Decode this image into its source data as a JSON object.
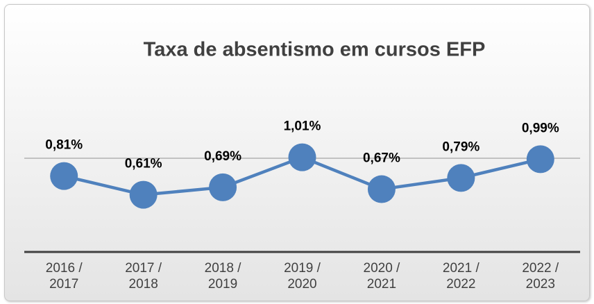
{
  "chart_data": {
    "type": "line",
    "title": "Taxa de absentismo em cursos EFP",
    "categories": [
      "2016 / 2017",
      "2017 / 2018",
      "2018 / 2019",
      "2019 / 2020",
      "2020 / 2021",
      "2021 / 2022",
      "2022 / 2023"
    ],
    "series": [
      {
        "name": "Taxa de absentismo",
        "color": "#4f81bd",
        "values": [
          0.81,
          0.61,
          0.69,
          1.01,
          0.67,
          0.79,
          0.99
        ],
        "value_labels": [
          "0,81%",
          "0,61%",
          "0,69%",
          "1,01%",
          "0,67%",
          "0,79%",
          "0,99%"
        ]
      }
    ],
    "ylim": [
      0,
      1.2
    ],
    "yticks": [
      0,
      1
    ],
    "grid": true
  }
}
